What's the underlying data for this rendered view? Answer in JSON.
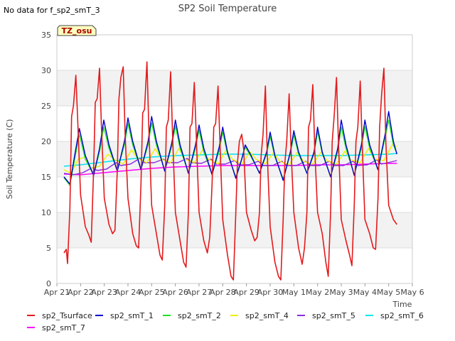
{
  "no_data_note": "No data for f_sp2_smT_3",
  "tag_label": "TZ_osu",
  "chart_data": {
    "type": "line",
    "title": "SP2 Soil Temperature",
    "xlabel": "Time",
    "ylabel": "Soil Temperature (C)",
    "ylim": [
      0,
      35
    ],
    "yticks": [
      0,
      5,
      10,
      15,
      20,
      25,
      30,
      35
    ],
    "xlim": [
      0,
      15
    ],
    "xticks": [
      {
        "pos": 0,
        "label": "Apr 21"
      },
      {
        "pos": 1,
        "label": "Apr 22"
      },
      {
        "pos": 2,
        "label": "Apr 23"
      },
      {
        "pos": 3,
        "label": "Apr 24"
      },
      {
        "pos": 4,
        "label": "Apr 25"
      },
      {
        "pos": 5,
        "label": "Apr 26"
      },
      {
        "pos": 6,
        "label": "Apr 27"
      },
      {
        "pos": 7,
        "label": "Apr 28"
      },
      {
        "pos": 8,
        "label": "Apr 29"
      },
      {
        "pos": 9,
        "label": "Apr 30"
      },
      {
        "pos": 10,
        "label": "May 1"
      },
      {
        "pos": 11,
        "label": "May 2"
      },
      {
        "pos": 12,
        "label": "May 3"
      },
      {
        "pos": 13,
        "label": "May 4"
      },
      {
        "pos": 14,
        "label": "May 5"
      },
      {
        "pos": 15,
        "label": "May 6"
      }
    ],
    "series": [
      {
        "name": "sp2_Tsurface",
        "color": "#e41a1c",
        "x": [
          0.3,
          0.4,
          0.45,
          0.55,
          0.62,
          0.7,
          0.8,
          0.88,
          1.0,
          1.2,
          1.35,
          1.45,
          1.55,
          1.62,
          1.7,
          1.8,
          1.88,
          2.0,
          2.2,
          2.35,
          2.45,
          2.55,
          2.62,
          2.7,
          2.8,
          2.88,
          3.0,
          3.2,
          3.35,
          3.45,
          3.55,
          3.62,
          3.7,
          3.8,
          3.88,
          4.0,
          4.2,
          4.35,
          4.45,
          4.55,
          4.62,
          4.7,
          4.8,
          4.88,
          5.0,
          5.2,
          5.35,
          5.45,
          5.55,
          5.62,
          5.7,
          5.8,
          5.88,
          6.0,
          6.2,
          6.35,
          6.45,
          6.55,
          6.62,
          6.7,
          6.8,
          6.88,
          7.0,
          7.2,
          7.35,
          7.45,
          7.55,
          7.62,
          7.7,
          7.8,
          7.88,
          8.0,
          8.2,
          8.35,
          8.45,
          8.55,
          8.62,
          8.7,
          8.8,
          8.88,
          9.0,
          9.2,
          9.35,
          9.45,
          9.55,
          9.62,
          9.7,
          9.8,
          9.88,
          10.0,
          10.2,
          10.35,
          10.45,
          10.55,
          10.62,
          10.7,
          10.8,
          10.88,
          11.0,
          11.2,
          11.35,
          11.45,
          11.55,
          11.62,
          11.7,
          11.8,
          11.88,
          12.0,
          12.2,
          12.35,
          12.45,
          12.55,
          12.62,
          12.7,
          12.8,
          12.88,
          13.0,
          13.2,
          13.35,
          13.45,
          13.55,
          13.62,
          13.7,
          13.8,
          13.88,
          14.0,
          14.2,
          14.35
        ],
        "y": [
          4.3,
          4.8,
          2.8,
          10.5,
          23.5,
          25.0,
          29.3,
          23.0,
          12.5,
          8.0,
          6.8,
          5.8,
          16.0,
          25.5,
          26.0,
          30.3,
          22.0,
          12.0,
          8.3,
          7.0,
          7.5,
          16.0,
          26.0,
          29.0,
          30.5,
          21.0,
          12.0,
          7.0,
          5.3,
          5.0,
          14.0,
          24.0,
          24.5,
          31.2,
          22.0,
          11.0,
          7.0,
          4.0,
          3.3,
          11.0,
          22.0,
          23.0,
          29.8,
          21.0,
          10.0,
          6.0,
          3.0,
          2.3,
          10.0,
          22.0,
          22.5,
          28.3,
          21.0,
          10.0,
          6.0,
          4.3,
          6.5,
          14.0,
          22.0,
          22.5,
          27.8,
          20.0,
          9.0,
          4.0,
          1.0,
          0.5,
          10.0,
          17.0,
          20.0,
          21.0,
          19.0,
          10.0,
          7.5,
          6.0,
          6.5,
          10.0,
          18.0,
          21.0,
          27.8,
          18.0,
          8.0,
          3.0,
          1.0,
          0.5,
          9.0,
          17.0,
          20.0,
          26.7,
          19.0,
          10.0,
          5.0,
          2.7,
          5.0,
          10.0,
          22.0,
          23.0,
          28.0,
          19.0,
          10.0,
          7.0,
          3.0,
          1.0,
          10.0,
          20.0,
          23.5,
          29.0,
          20.0,
          9.0,
          6.0,
          4.0,
          2.5,
          11.0,
          20.0,
          22.0,
          28.5,
          20.0,
          9.0,
          7.0,
          5.0,
          4.8,
          12.0,
          22.0,
          26.5,
          30.3,
          20.0,
          11.0,
          9.0,
          8.3
        ]
      },
      {
        "name": "sp2_smT_1",
        "color": "#0000cc",
        "x": [
          0.3,
          0.55,
          0.75,
          0.95,
          1.2,
          1.55,
          1.8,
          1.98,
          2.2,
          2.55,
          2.85,
          3.0,
          3.2,
          3.55,
          3.85,
          4.0,
          4.2,
          4.55,
          4.85,
          5.0,
          5.2,
          5.55,
          5.85,
          6.0,
          6.2,
          6.55,
          6.85,
          7.0,
          7.2,
          7.55,
          7.8,
          7.95,
          8.2,
          8.55,
          8.85,
          9.0,
          9.2,
          9.55,
          9.85,
          10.0,
          10.2,
          10.55,
          10.85,
          11.0,
          11.2,
          11.55,
          11.85,
          12.0,
          12.2,
          12.55,
          12.85,
          13.0,
          13.2,
          13.55,
          13.85,
          14.0,
          14.2,
          14.35
        ],
        "y": [
          15.0,
          14.0,
          18.0,
          21.8,
          18.0,
          15.2,
          19.0,
          23.0,
          19.5,
          15.8,
          20.0,
          23.3,
          20.0,
          16.0,
          20.0,
          23.5,
          20.0,
          15.8,
          19.8,
          23.0,
          19.5,
          15.5,
          19.5,
          22.3,
          19.0,
          15.3,
          19.2,
          22.0,
          18.5,
          14.8,
          17.5,
          19.5,
          18.0,
          15.5,
          18.5,
          21.3,
          18.0,
          14.5,
          18.5,
          21.5,
          18.5,
          15.5,
          18.5,
          22.0,
          18.5,
          15.0,
          19.0,
          23.0,
          19.5,
          15.2,
          19.5,
          23.0,
          19.5,
          16.0,
          21.0,
          24.2,
          20.0,
          18.2
        ]
      },
      {
        "name": "sp2_smT_2",
        "color": "#1ee61e",
        "x": [
          0.3,
          0.55,
          0.75,
          0.95,
          1.2,
          1.55,
          1.8,
          1.98,
          2.2,
          2.55,
          2.85,
          3.0,
          3.2,
          3.55,
          3.85,
          4.0,
          4.2,
          4.55,
          4.85,
          5.0,
          5.2,
          5.55,
          5.85,
          6.0,
          6.2,
          6.55,
          6.85,
          7.0,
          7.2,
          7.55,
          7.8,
          7.95,
          8.2,
          8.55,
          8.85,
          9.0,
          9.2,
          9.55,
          9.85,
          10.0,
          10.2,
          10.55,
          10.85,
          11.0,
          11.2,
          11.55,
          11.85,
          12.0,
          12.2,
          12.55,
          12.85,
          13.0,
          13.2,
          13.55,
          13.85,
          14.0,
          14.2,
          14.35
        ],
        "y": [
          14.9,
          13.8,
          17.5,
          21.0,
          17.5,
          15.3,
          18.5,
          22.0,
          19.0,
          15.9,
          19.5,
          22.5,
          19.5,
          16.1,
          19.5,
          22.6,
          19.5,
          15.9,
          19.3,
          22.2,
          19.0,
          15.6,
          19.0,
          21.6,
          18.5,
          15.4,
          18.7,
          21.3,
          18.2,
          15.0,
          17.5,
          19.2,
          17.8,
          15.6,
          18.2,
          20.7,
          17.8,
          14.7,
          18.2,
          20.9,
          18.2,
          15.6,
          18.2,
          21.4,
          18.3,
          15.1,
          18.5,
          22.0,
          19.0,
          15.3,
          19.0,
          22.1,
          19.0,
          16.0,
          20.5,
          23.0,
          19.5,
          18.3
        ]
      },
      {
        "name": "sp2_smT_4",
        "color": "#f0f000",
        "x": [
          0.3,
          0.6,
          0.9,
          1.2,
          1.4,
          1.8,
          2.15,
          2.4,
          2.8,
          3.15,
          3.4,
          3.8,
          4.15,
          4.4,
          4.8,
          5.15,
          5.4,
          5.8,
          6.15,
          6.4,
          6.8,
          7.15,
          7.4,
          7.8,
          8.15,
          8.4,
          8.8,
          9.15,
          9.4,
          9.8,
          10.15,
          10.4,
          10.8,
          11.15,
          11.4,
          11.8,
          12.15,
          12.4,
          12.8,
          13.15,
          13.4,
          13.8,
          14.15,
          14.35
        ],
        "y": [
          16.0,
          15.5,
          17.5,
          17.8,
          16.2,
          16.5,
          18.2,
          17.5,
          16.8,
          18.8,
          17.6,
          17.0,
          19.0,
          17.5,
          17.0,
          19.0,
          17.5,
          17.0,
          18.8,
          17.5,
          16.8,
          18.8,
          17.5,
          16.8,
          18.5,
          17.5,
          16.8,
          18.5,
          17.2,
          16.7,
          18.5,
          17.2,
          16.8,
          18.5,
          17.3,
          16.8,
          18.6,
          17.4,
          17.0,
          19.0,
          17.5,
          17.3,
          19.5,
          19.3
        ]
      },
      {
        "name": "sp2_smT_5",
        "color": "#8a2be2",
        "x": [
          0.3,
          0.7,
          1.1,
          1.5,
          1.7,
          2.1,
          2.5,
          2.7,
          3.1,
          3.5,
          3.7,
          4.1,
          4.5,
          4.7,
          5.1,
          5.5,
          5.7,
          6.1,
          6.5,
          6.7,
          7.1,
          7.5,
          7.7,
          8.1,
          8.5,
          8.7,
          9.1,
          9.5,
          9.7,
          10.1,
          10.5,
          10.7,
          11.1,
          11.5,
          11.7,
          12.1,
          12.5,
          12.7,
          13.1,
          13.5,
          13.7,
          14.1,
          14.35
        ],
        "y": [
          15.5,
          15.3,
          15.6,
          16.3,
          15.9,
          16.1,
          17.0,
          16.6,
          16.8,
          17.6,
          17.0,
          17.0,
          17.5,
          17.0,
          17.0,
          17.6,
          17.0,
          16.9,
          17.5,
          16.8,
          16.8,
          17.3,
          16.7,
          16.7,
          17.2,
          16.6,
          16.6,
          17.2,
          16.6,
          16.6,
          17.2,
          16.6,
          16.6,
          17.2,
          16.6,
          16.6,
          17.2,
          16.6,
          16.7,
          17.4,
          16.8,
          17.1,
          17.3
        ]
      },
      {
        "name": "sp2_smT_6",
        "color": "#00e5ee",
        "x": [
          0.3,
          1.0,
          2.0,
          3.0,
          4.0,
          5.0,
          6.0,
          7.0,
          8.0,
          9.0,
          10.0,
          11.0,
          12.0,
          13.0,
          14.0,
          14.35
        ],
        "y": [
          16.5,
          16.7,
          17.1,
          17.5,
          17.8,
          18.0,
          18.1,
          18.2,
          18.2,
          18.1,
          18.0,
          18.0,
          18.0,
          18.1,
          18.2,
          18.3
        ]
      },
      {
        "name": "sp2_smT_7",
        "color": "#ff00ff",
        "x": [
          0.3,
          1.0,
          2.0,
          3.0,
          4.0,
          5.0,
          6.0,
          7.0,
          8.0,
          9.0,
          10.0,
          11.0,
          12.0,
          13.0,
          14.0,
          14.35
        ],
        "y": [
          15.4,
          15.3,
          15.6,
          15.9,
          16.2,
          16.4,
          16.5,
          16.6,
          16.6,
          16.6,
          16.6,
          16.7,
          16.7,
          16.8,
          16.9,
          16.9
        ]
      }
    ]
  }
}
